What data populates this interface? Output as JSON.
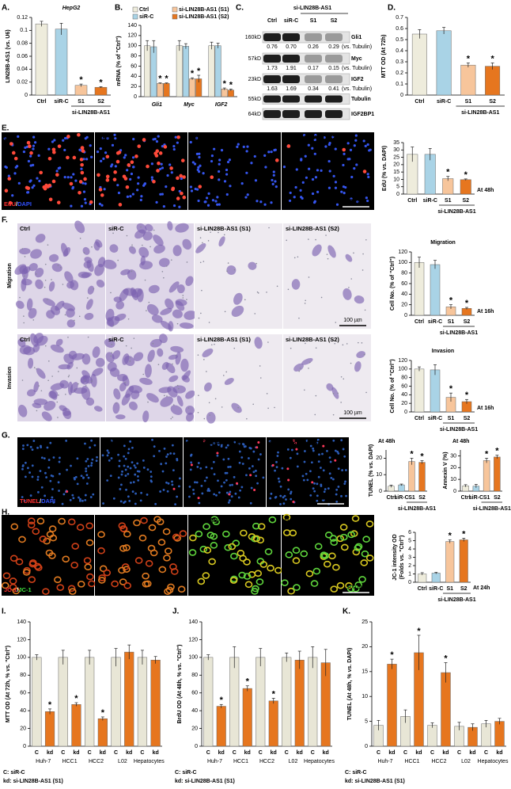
{
  "panel_labels": [
    "A.",
    "B.",
    "C.",
    "D.",
    "E.",
    "F.",
    "G.",
    "H.",
    "I.",
    "J.",
    "K."
  ],
  "blot": {
    "header": "si-LIN28B-AS1",
    "columns": [
      "Ctrl",
      "siR-C",
      "S1",
      "S2"
    ],
    "rows": [
      {
        "marker": "160kD",
        "name": "Gli1",
        "quant": [
          "0.76",
          "0.70",
          "0.26",
          "0.29"
        ],
        "unit": "(vs. Tubulin)"
      },
      {
        "marker": "57kD",
        "name": "Myc",
        "quant": [
          "1.73",
          "1.91",
          "0.17",
          "0.15"
        ],
        "unit": "(vs. Tubulin)"
      },
      {
        "marker": "23kD",
        "name": "IGF2",
        "quant": [
          "1.63",
          "1.69",
          "0.34",
          "0.41"
        ],
        "unit": "(vs. Tubulin)"
      },
      {
        "marker": "55kD",
        "name": "Tubulin"
      },
      {
        "marker": "64kD",
        "name": "IGF2BP1"
      }
    ]
  },
  "image_panels": [
    {
      "labels": [
        "Ctrl",
        "siR-C",
        "si-LIN28B-AS1 (S1)",
        "si-LIN28B-AS1 (S2)"
      ],
      "stain": [
        "EdU",
        "/",
        "DAPI"
      ],
      "scale": "100 µm"
    },
    {
      "side": "Migration",
      "labels": [
        "Ctrl",
        "siR-C",
        "si-LIN28B-AS1 (S1)",
        "si-LIN28B-AS1 (S2)"
      ],
      "scale": "100 µm"
    },
    {
      "side": "Invasion",
      "labels": [
        "Ctrl",
        "siR-C",
        "si-LIN28B-AS1 (S1)",
        "si-LIN28B-AS1 (S2)"
      ],
      "scale": "100 µm"
    },
    {
      "labels": [
        "Ctrl",
        "siR-C",
        "si-LIN28B-AS1 (S1)",
        "si-LIN28B-AS1 (S2)"
      ],
      "stain": [
        "TUNEL",
        "/",
        "DAPI"
      ],
      "scale": "100 µm"
    },
    {
      "labels": [
        "Ctrl",
        "siR-C",
        "si-LIN28B-AS1 (S1)",
        "si-LIN28B-AS1 (S2)"
      ],
      "stain": [
        "JC-1",
        "/",
        "JC-1"
      ],
      "scale": "100 µm"
    }
  ],
  "chart_data": [
    {
      "type": "bar",
      "title": "HepG2",
      "y_label": "LIN28B-AS1 (vs. U6)",
      "categories": [
        "Ctrl",
        "siR-C",
        "S1",
        "S2"
      ],
      "values": [
        0.11,
        0.102,
        0.015,
        0.012
      ],
      "errors": [
        0.004,
        0.009,
        0.002,
        0.001
      ],
      "colors": [
        "#eeecdc",
        "#a9d3e6",
        "#f7c59b",
        "#e6761f"
      ],
      "significance": [
        null,
        null,
        "*",
        "*"
      ],
      "group_label": "si-LIN28B-AS1",
      "ylim": [
        0,
        0.12
      ],
      "yticks": [
        0,
        0.02,
        0.04,
        0.06,
        0.08,
        0.1,
        0.12
      ]
    },
    {
      "type": "grouped_bar",
      "y_label": "mRNA (% of \"Ctrl\")",
      "categories": [
        "Gli1",
        "Myc",
        "IGF2"
      ],
      "series": [
        {
          "name": "Ctrl",
          "color": "#eeecdc",
          "values": [
            100,
            100,
            100
          ],
          "errors": [
            10,
            10,
            7
          ],
          "significance": [
            null,
            null,
            null
          ]
        },
        {
          "name": "siR-C",
          "color": "#a9d3e6",
          "values": [
            98,
            99,
            100
          ],
          "errors": [
            12,
            5,
            5
          ],
          "significance": [
            null,
            null,
            null
          ]
        },
        {
          "name": "si-LIN28B-AS1 (S1)",
          "color": "#f7c59b",
          "values": [
            26,
            35,
            15
          ],
          "errors": [
            1,
            2,
            2
          ],
          "significance": [
            "*",
            "*",
            "*"
          ]
        },
        {
          "name": "si-LIN28B-AS1 (S2)",
          "color": "#e6761f",
          "values": [
            26,
            35,
            13
          ],
          "errors": [
            1,
            7,
            2
          ],
          "significance": [
            "*",
            "*",
            "*"
          ]
        }
      ],
      "ylim": [
        0,
        140
      ],
      "yticks": [
        0,
        20,
        40,
        60,
        80,
        100,
        120,
        140
      ]
    },
    {
      "type": "bar",
      "y_label": "MTT OD (At 72h)",
      "categories": [
        "Ctrl",
        "siR-C",
        "S1",
        "S2"
      ],
      "values": [
        0.55,
        0.58,
        0.27,
        0.26
      ],
      "errors": [
        0.04,
        0.03,
        0.02,
        0.03
      ],
      "colors": [
        "#eeecdc",
        "#a9d3e6",
        "#f7c59b",
        "#e6761f"
      ],
      "significance": [
        null,
        null,
        "*",
        "*"
      ],
      "group_label": "si-LIN28B-AS1",
      "ylim": [
        0,
        0.7
      ],
      "yticks": [
        0,
        0.1,
        0.2,
        0.3,
        0.4,
        0.5,
        0.6,
        0.7
      ]
    },
    {
      "type": "bar",
      "y_label": "EdU (% vs. DAPI)",
      "categories": [
        "Ctrl",
        "siR-C",
        "S1",
        "S2"
      ],
      "values": [
        27,
        27,
        10.5,
        9.8
      ],
      "errors": [
        5,
        4,
        1.5,
        0.5
      ],
      "colors": [
        "#eeecdc",
        "#a9d3e6",
        "#f7c59b",
        "#e6761f"
      ],
      "significance": [
        null,
        null,
        "*",
        "*"
      ],
      "group_label": "si-LIN28B-AS1",
      "label_color": "#d0021b",
      "note": "At 48h",
      "ylim": [
        0,
        35
      ],
      "yticks": [
        0,
        5,
        10,
        15,
        20,
        25,
        30,
        35
      ]
    },
    {
      "type": "bar",
      "title": "Migration",
      "y_label": "Cell No. (% of \"Ctrl\")",
      "categories": [
        "Ctrl",
        "siR-C",
        "S1",
        "S2"
      ],
      "values": [
        100,
        96,
        16,
        13
      ],
      "errors": [
        10,
        8,
        4,
        2
      ],
      "colors": [
        "#eeecdc",
        "#a9d3e6",
        "#f7c59b",
        "#e6761f"
      ],
      "significance": [
        null,
        null,
        "*",
        "*"
      ],
      "group_label": "si-LIN28B-AS1",
      "label_color": "#d0021b",
      "note": "At 16h",
      "ylim": [
        0,
        120
      ],
      "yticks": [
        0,
        20,
        40,
        60,
        80,
        100,
        120
      ]
    },
    {
      "type": "bar",
      "title": "Invasion",
      "y_label": "Cell No. (% of \"Ctrl\")",
      "categories": [
        "Ctrl",
        "siR-C",
        "S1",
        "S2"
      ],
      "values": [
        100,
        98,
        34,
        24
      ],
      "errors": [
        5,
        12,
        10,
        5
      ],
      "colors": [
        "#eeecdc",
        "#a9d3e6",
        "#f7c59b",
        "#e6761f"
      ],
      "significance": [
        null,
        null,
        "*",
        "*"
      ],
      "group_label": "si-LIN28B-AS1",
      "label_color": "#d0021b",
      "note": "At 16h",
      "ylim": [
        0,
        120
      ],
      "yticks": [
        0,
        20,
        40,
        60,
        80,
        100,
        120
      ]
    },
    {
      "type": "bar",
      "y_label": "TUNEL (% vs. DAPI)",
      "categories": [
        "Ctrl",
        "siR-C",
        "S1",
        "S2"
      ],
      "values": [
        3,
        3.8,
        18,
        17.5
      ],
      "errors": [
        0.7,
        0.5,
        2,
        1
      ],
      "colors": [
        "#eeecdc",
        "#a9d3e6",
        "#f7c59b",
        "#e6761f"
      ],
      "significance": [
        null,
        null,
        "*",
        "*"
      ],
      "group_label": "si-LIN28B-AS1",
      "label_color": "#d0021b",
      "note": "At 48h",
      "ylim": [
        0,
        25
      ],
      "yticks": [
        0,
        10,
        20
      ]
    },
    {
      "type": "bar",
      "y_label": "Annexin V (%)",
      "categories": [
        "Ctrl",
        "siR-C",
        "S1",
        "S2"
      ],
      "values": [
        4.5,
        4.3,
        26,
        29
      ],
      "errors": [
        1,
        1.5,
        2,
        1.5
      ],
      "colors": [
        "#eeecdc",
        "#a9d3e6",
        "#f7c59b",
        "#e6761f"
      ],
      "significance": [
        null,
        null,
        "*",
        "*"
      ],
      "group_label": "si-LIN28B-AS1",
      "label_color": "#d0021b",
      "note": "At 48h",
      "ylim": [
        0,
        35
      ],
      "yticks": [
        0,
        10,
        20,
        30
      ]
    },
    {
      "type": "bar",
      "y_label": [
        "JC-1 intensity OD",
        "(Folds vs. \"Ctrl\")"
      ],
      "categories": [
        "Ctrl",
        "siR-C",
        "S1",
        "S2"
      ],
      "values": [
        1,
        1.1,
        4.9,
        5.1
      ],
      "errors": [
        0.15,
        0.1,
        0.2,
        0.2
      ],
      "colors": [
        "#eeecdc",
        "#a9d3e6",
        "#f7c59b",
        "#e6761f"
      ],
      "significance": [
        null,
        null,
        "*",
        "*"
      ],
      "group_label": "si-LIN28B-AS1",
      "label_color": "#d0021b",
      "note": "At 24h",
      "ylim": [
        0,
        6
      ],
      "yticks": [
        0,
        1,
        2,
        3,
        4,
        5,
        6
      ]
    },
    {
      "type": "bar",
      "y_label": "MTT OD (At 72h, % vs. \"Ctrl\")",
      "categories": [
        "C",
        "kd",
        "C",
        "kd",
        "C",
        "kd",
        "C",
        "kd",
        "C",
        "kd"
      ],
      "groups": [
        "Huh-7",
        "HCC1",
        "HCC2",
        "L02",
        "Hepatocytes"
      ],
      "values": [
        100,
        39,
        100,
        47,
        100,
        31,
        100,
        106,
        100,
        97
      ],
      "errors": [
        3,
        3,
        8,
        2,
        8,
        2,
        10,
        8,
        8,
        4
      ],
      "colors": [
        "#e8e6d6",
        "#e6761f",
        "#e8e6d6",
        "#e6761f",
        "#e8e6d6",
        "#e6761f",
        "#e8e6d6",
        "#e6761f",
        "#e8e6d6",
        "#e6761f"
      ],
      "significance": [
        null,
        "*",
        null,
        "*",
        null,
        "*",
        null,
        null,
        null,
        null
      ],
      "footnotes": [
        "C: siR-C",
        "kd: si-LIN28B-AS1 (S1)"
      ],
      "ylim": [
        0,
        140
      ],
      "yticks": [
        0,
        20,
        40,
        60,
        80,
        100,
        120,
        140
      ]
    },
    {
      "type": "bar",
      "y_label": "BrdU OD (At 48h, % vs. \"Ctrl\")",
      "categories": [
        "C",
        "kd",
        "C",
        "kd",
        "C",
        "kd",
        "C",
        "kd",
        "C",
        "kd"
      ],
      "groups": [
        "Huh-7",
        "HCC1",
        "HCC2",
        "L02",
        "Hepatocytes"
      ],
      "values": [
        100,
        45,
        100,
        65,
        100,
        51,
        100,
        97,
        100,
        94
      ],
      "errors": [
        3,
        2,
        12,
        3,
        10,
        3,
        5,
        10,
        12,
        15
      ],
      "colors": [
        "#e8e6d6",
        "#e6761f",
        "#e8e6d6",
        "#e6761f",
        "#e8e6d6",
        "#e6761f",
        "#e8e6d6",
        "#e6761f",
        "#e8e6d6",
        "#e6761f"
      ],
      "significance": [
        null,
        "*",
        null,
        "*",
        null,
        "*",
        null,
        null,
        null,
        null
      ],
      "footnotes": [
        "C: siR-C",
        "kd: si-LIN28B-AS1 (S1)"
      ],
      "ylim": [
        0,
        140
      ],
      "yticks": [
        0,
        20,
        40,
        60,
        80,
        100,
        120,
        140
      ]
    },
    {
      "type": "bar",
      "y_label": "TUNEL (At 48h, % vs. DAPI)",
      "categories": [
        "C",
        "kd",
        "C",
        "kd",
        "C",
        "kd",
        "C",
        "kd",
        "C",
        "kd"
      ],
      "groups": [
        "Huh-7",
        "HCC1",
        "HCC2",
        "L02",
        "Hepatocytes"
      ],
      "values": [
        4.2,
        16.5,
        6,
        18.8,
        4.2,
        14.8,
        4,
        3.8,
        4.5,
        5
      ],
      "errors": [
        1,
        1,
        1.3,
        3.5,
        0.5,
        2,
        0.8,
        0.7,
        0.7,
        0.6
      ],
      "colors": [
        "#e8e6d6",
        "#e6761f",
        "#e8e6d6",
        "#e6761f",
        "#e8e6d6",
        "#e6761f",
        "#e8e6d6",
        "#e6761f",
        "#e8e6d6",
        "#e6761f"
      ],
      "significance": [
        null,
        "*",
        null,
        "*",
        null,
        "*",
        null,
        null,
        null,
        null
      ],
      "footnotes": [
        "C: siR-C",
        "kd: si-LIN28B-AS1 (S1)"
      ],
      "ylim": [
        0,
        25
      ],
      "yticks": [
        0,
        5,
        10,
        15,
        20,
        25
      ]
    }
  ]
}
